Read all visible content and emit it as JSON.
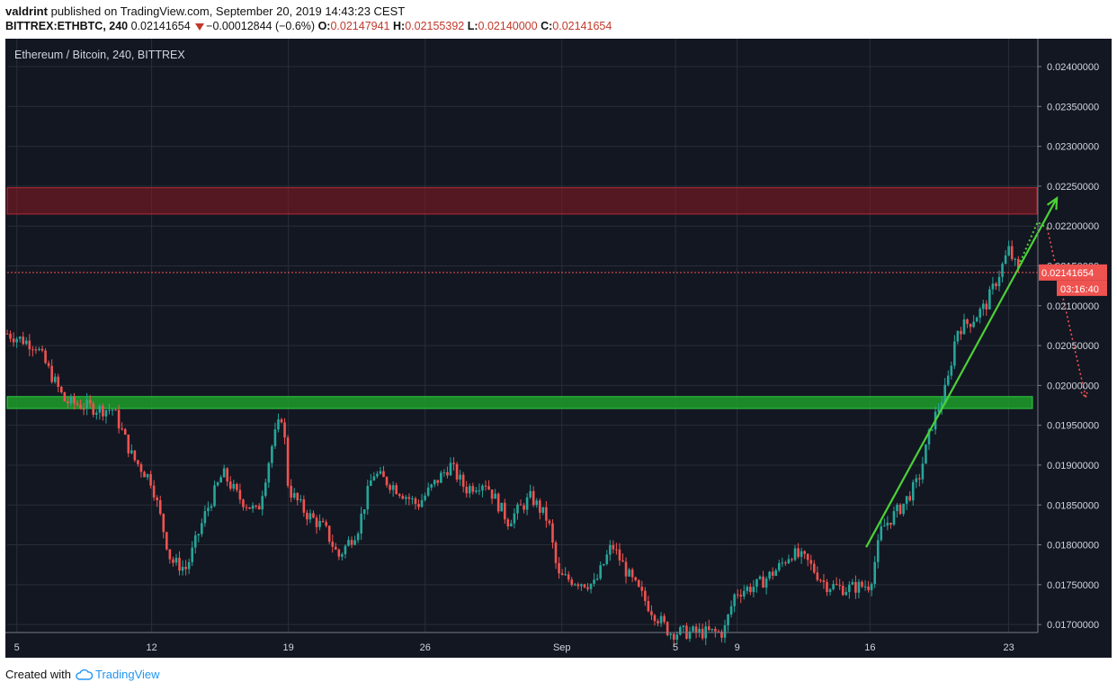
{
  "header": {
    "author": "valdrint",
    "published_text": "published on TradingView.com, September 20, 2019 14:43:23 CEST",
    "symbol": "BITTREX:ETHBTC, 240",
    "last": "0.02141654",
    "change": "−0.00012844 (−0.6%)",
    "o_label": "O:",
    "o_value": "0.02147941",
    "h_label": "H:",
    "h_value": "0.02155392",
    "l_label": "L:",
    "l_value": "0.02140000",
    "c_label": "C:",
    "c_value": "0.02141654"
  },
  "footer": {
    "created_with": "Created with",
    "brand": "TradingView"
  },
  "colors": {
    "background": "#131722",
    "up": "#26a69a",
    "down": "#ef5350",
    "resistance_zone": "#8b1a23",
    "support_zone": "#1e9e2a",
    "arrow": "#4cd137"
  },
  "chart_data": {
    "type": "candlestick",
    "title": "Ethereum / Bitcoin, 240, BITTREX",
    "ylim": [
      0.0169,
      0.02435
    ],
    "y_ticks": [
      "0.02400000",
      "0.02350000",
      "0.02300000",
      "0.02250000",
      "0.02200000",
      "0.02150000",
      "0.02100000",
      "0.02050000",
      "0.02000000",
      "0.01950000",
      "0.01900000",
      "0.01850000",
      "0.01800000",
      "0.01750000",
      "0.01700000"
    ],
    "x_ticks": [
      "5",
      "12",
      "19",
      "26",
      "Sep",
      "5",
      "9",
      "16",
      "23"
    ],
    "last_price_label": "0.02141654",
    "countdown_label": "03:16:40",
    "last_price": 0.02141654,
    "resistance_zone": [
      0.02215,
      0.02248
    ],
    "support_zone": [
      0.01971,
      0.01986
    ],
    "path_points": [
      [
        0.0,
        0.02065
      ],
      [
        1.5,
        0.0205
      ],
      [
        3.0,
        0.0198
      ],
      [
        4.8,
        0.0197
      ],
      [
        5.5,
        0.0197
      ],
      [
        6.5,
        0.0191
      ],
      [
        7.5,
        0.0188
      ],
      [
        8.5,
        0.0178
      ],
      [
        9.3,
        0.0177
      ],
      [
        10.3,
        0.0184
      ],
      [
        11.2,
        0.0189
      ],
      [
        12.0,
        0.0186
      ],
      [
        13.0,
        0.0184
      ],
      [
        13.8,
        0.0193
      ],
      [
        14.3,
        0.01965
      ],
      [
        14.6,
        0.0187
      ],
      [
        15.5,
        0.0184
      ],
      [
        16.5,
        0.0182
      ],
      [
        17.2,
        0.01785
      ],
      [
        18.2,
        0.0182
      ],
      [
        19.0,
        0.0189
      ],
      [
        20.0,
        0.01875
      ],
      [
        21.3,
        0.0185
      ],
      [
        22.3,
        0.0188
      ],
      [
        23.0,
        0.019
      ],
      [
        23.8,
        0.0187
      ],
      [
        24.8,
        0.0188
      ],
      [
        26.0,
        0.0183
      ],
      [
        27.2,
        0.0186
      ],
      [
        28.1,
        0.0183
      ],
      [
        28.6,
        0.0176
      ],
      [
        29.5,
        0.01755
      ],
      [
        30.5,
        0.0175
      ],
      [
        31.4,
        0.018
      ],
      [
        32.3,
        0.0176
      ],
      [
        33.4,
        0.0172
      ],
      [
        34.4,
        0.0169
      ],
      [
        36.5,
        0.0169
      ],
      [
        37.2,
        0.0169
      ],
      [
        37.8,
        0.0174
      ],
      [
        39.0,
        0.0175
      ],
      [
        40.0,
        0.0177
      ],
      [
        40.7,
        0.0179
      ],
      [
        41.5,
        0.0178
      ],
      [
        42.5,
        0.0175
      ],
      [
        43.5,
        0.01745
      ],
      [
        44.8,
        0.0175
      ],
      [
        45.4,
        0.0182
      ],
      [
        46.5,
        0.0185
      ],
      [
        47.3,
        0.0188
      ],
      [
        48.0,
        0.0195
      ],
      [
        48.8,
        0.02
      ],
      [
        49.3,
        0.0207
      ],
      [
        50.0,
        0.0208
      ],
      [
        50.8,
        0.021
      ],
      [
        51.5,
        0.0214
      ],
      [
        52.0,
        0.0217
      ],
      [
        52.5,
        0.02142
      ]
    ],
    "x_tick_positions": [
      0.5,
      7.5,
      14.6,
      21.7,
      28.8,
      34.7,
      37.9,
      44.8,
      52.0
    ],
    "x_max": 53.0,
    "candle_count": 318,
    "up_arrow": {
      "from": [
        44.6,
        0.01797
      ],
      "to": [
        54.5,
        0.02235
      ]
    },
    "forecast_up": {
      "from": [
        52.6,
        0.02155
      ],
      "mid": [
        53.5,
        0.02205
      ],
      "to": [
        54.0,
        0.02197
      ]
    },
    "forecast_down": {
      "from": [
        54.0,
        0.02197
      ],
      "to": [
        56.0,
        0.01985
      ]
    }
  }
}
